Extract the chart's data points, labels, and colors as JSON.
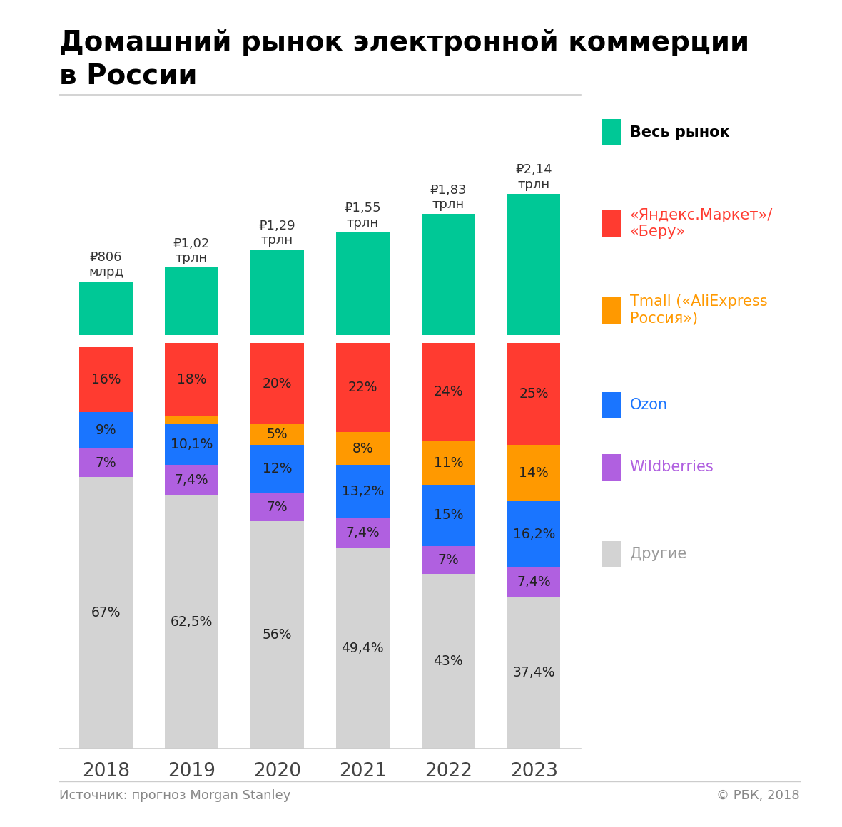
{
  "title_line1": "Домашний рынок электронной коммерции",
  "title_line2": "в России",
  "years": [
    "2018",
    "2019",
    "2020",
    "2021",
    "2022",
    "2023"
  ],
  "market_values": [
    "₽806\nмлрд",
    "₽1,02\nтрлн",
    "₽1,29\nтрлн",
    "₽1,55\nтрлн",
    "₽1,83\nтрлн",
    "₽2,14\nтрлн"
  ],
  "market_sizes": [
    0.806,
    1.02,
    1.29,
    1.55,
    1.83,
    2.14
  ],
  "segments": {
    "Другие": [
      67,
      62.5,
      56,
      49.4,
      43,
      37.4
    ],
    "Wildberries": [
      7,
      7.4,
      7,
      7.4,
      7,
      7.4
    ],
    "Ozon": [
      9,
      10.1,
      12,
      13.2,
      15,
      16.2
    ],
    "Tmall": [
      0,
      2,
      5,
      8,
      11,
      14
    ],
    "Yandex": [
      16,
      18,
      20,
      22,
      24,
      25
    ]
  },
  "segment_labels": {
    "Другие": [
      "67%",
      "62,5%",
      "56%",
      "49,4%",
      "43%",
      "37,4%"
    ],
    "Wildberries": [
      "7%",
      "7,4%",
      "7%",
      "7,4%",
      "7%",
      "7,4%"
    ],
    "Ozon": [
      "9%",
      "10,1%",
      "12%",
      "13,2%",
      "15%",
      "16,2%"
    ],
    "Tmall": [
      "",
      "",
      "5%",
      "8%",
      "11%",
      "14%"
    ],
    "Yandex": [
      "16%",
      "18%",
      "20%",
      "22%",
      "24%",
      "25%"
    ]
  },
  "colors": {
    "Другие": "#d3d3d3",
    "Wildberries": "#b060e0",
    "Ozon": "#1a75ff",
    "Tmall": "#ff9900",
    "Yandex": "#ff3b30"
  },
  "bar_color": "#00c896",
  "background_color": "#ffffff",
  "footer_left": "Источник: прогноз Morgan Stanley",
  "footer_right": "© РБК, 2018",
  "legend_items": [
    {
      "label": "Весь рынок",
      "color": "#00c896",
      "text_color": "#000000",
      "bold": true
    },
    {
      "label": "«Яндекс.Маркет»/\n«Беру»",
      "color": "#ff3b30",
      "text_color": "#ff3b30",
      "bold": false
    },
    {
      "label": "Tmall («AliExpress\nРоссия»)",
      "color": "#ff9900",
      "text_color": "#ff9900",
      "bold": false
    },
    {
      "label": "Ozon",
      "color": "#1a75ff",
      "text_color": "#1a75ff",
      "bold": false
    },
    {
      "label": "Wildberries",
      "color": "#b060e0",
      "text_color": "#b060e0",
      "bold": false
    },
    {
      "label": "Другие",
      "color": "#d3d3d3",
      "text_color": "#999999",
      "bold": false
    }
  ]
}
